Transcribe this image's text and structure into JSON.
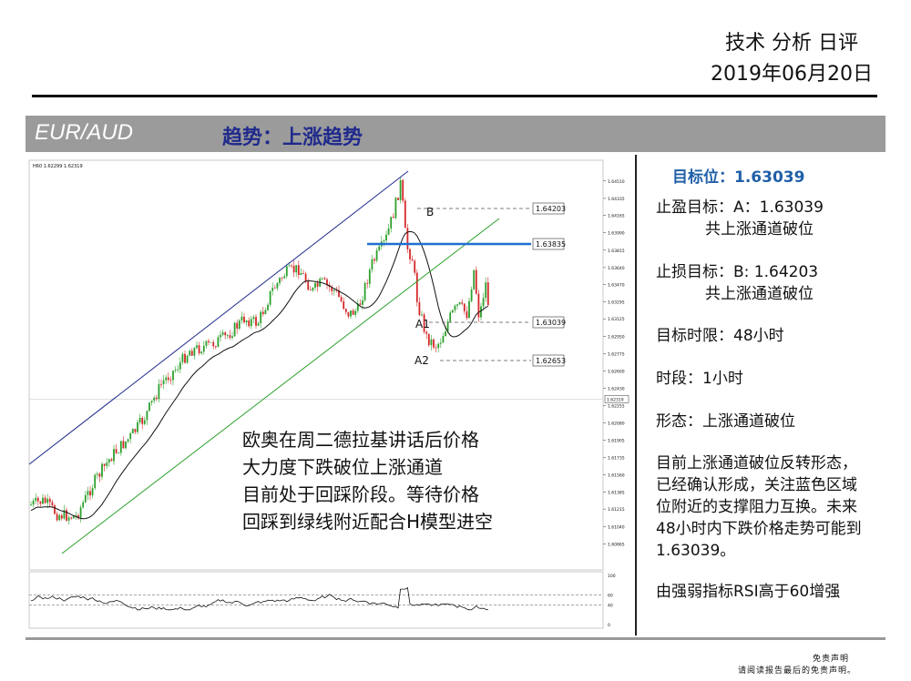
{
  "header": {
    "title": "技术 分析 日评",
    "date": "2019年06月20日"
  },
  "banner": {
    "pair": "EUR/AUD",
    "trend": "趋势：上涨趋势",
    "bg_color": "#9b9b9b",
    "trend_color": "#1f2a8c"
  },
  "sidebar": {
    "target": "目标位：1.63039",
    "take_profit_label": "止盈目标：A：1.63039",
    "take_profit_note": "共上涨通道破位",
    "stop_loss_label": "止损目标：B: 1.64203",
    "stop_loss_note": "共上涨通道破位",
    "time_limit": "目标时限：48小时",
    "period": "时段：1小时",
    "pattern": "形态：上涨通道破位",
    "summary_lines": [
      "目前上涨通道破位反转形态，",
      "已经确认形成，关注蓝色区域",
      "位附近的支撑阻力互换。未来",
      "48小时内下跌价格走势可能到",
      "1.63039。"
    ],
    "rsi_note": "由强弱指标RSI高于60增强"
  },
  "footer": {
    "line1": "免责声明",
    "line2": "请阅读报告最后的免责声明。"
  },
  "chart_data": {
    "type": "line",
    "title": "",
    "header_text": "H60 1.62299 1.62319",
    "annotation_lines": [
      "欧奥在周二德拉基讲话后价格",
      "大力度下跌破位上涨通道",
      "目前处于回踩阶段。等待价格",
      "回踩到绿线附近配合H模型进空"
    ],
    "y_ticks": [
      "1.64510",
      "1.64335",
      "1.64165",
      "1.63990",
      "1.63815",
      "1.63640",
      "1.63470",
      "1.63295",
      "1.63125",
      "1.62950",
      "1.62775",
      "1.62600",
      "1.62430",
      "1.62255",
      "1.62080",
      "1.61905",
      "1.61735",
      "1.61560",
      "1.61385",
      "1.61215",
      "1.61040",
      "1.60865"
    ],
    "current_price": "1.62319",
    "ylim": [
      1.6075,
      1.6459
    ],
    "levels": [
      {
        "name": "B",
        "value": 1.64203,
        "label": "1.64203",
        "color": "#555555",
        "style": "dashed"
      },
      {
        "name": "",
        "value": 1.63835,
        "label": "1.63835",
        "color": "#1f6fd0",
        "style": "solid"
      },
      {
        "name": "A1",
        "value": 1.63039,
        "label": "1.63039",
        "color": "#555555",
        "style": "dashed"
      },
      {
        "name": "A2",
        "value": 1.62653,
        "label": "1.62653",
        "color": "#555555",
        "style": "dashed"
      }
    ],
    "rsi": {
      "levels": [
        60,
        40
      ],
      "ticks": [
        "100",
        "60",
        "40",
        "0"
      ]
    },
    "colors": {
      "up": "#2ca02c",
      "down": "#d62728",
      "channel_upper": "#1f2a8c",
      "channel_lower": "#2ca02c",
      "ma": "#111111"
    }
  }
}
